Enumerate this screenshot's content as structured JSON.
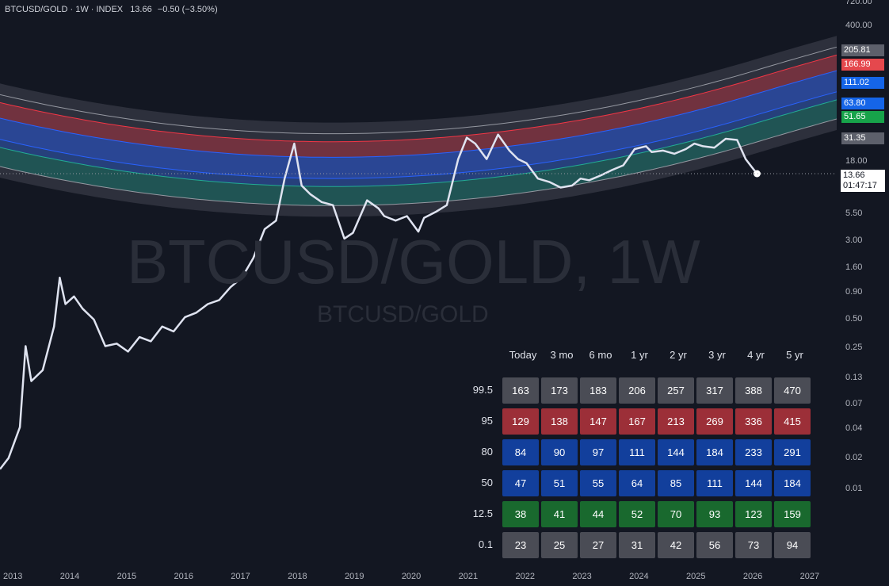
{
  "header": {
    "symbol_line": "BTCUSD/GOLD · 1W · INDEX",
    "last_value": "13.66",
    "change": "−0.50 (−3.50%)"
  },
  "watermark": {
    "main": "BTCUSD/GOLD, 1W",
    "sub": "BTCUSD/GOLD"
  },
  "current_price_tag": {
    "value": "13.66",
    "countdown": "01:47:17"
  },
  "colors": {
    "background": "#131722",
    "band_outer": "#5d606b",
    "band_red": "#f23645",
    "band_blue": "#2962ff",
    "band_green": "#089981",
    "tag_gray": "#5d606b",
    "tag_red": "#e5484d",
    "tag_blue": "#1565e8",
    "tag_green": "#17a34a",
    "cell_gray": "#4a4c55",
    "cell_red": "#9c2f38",
    "cell_blue": "#123f9c",
    "cell_green": "#19692e"
  },
  "band_tags": [
    {
      "label": "205.81",
      "color": "gray"
    },
    {
      "label": "166.99",
      "color": "red"
    },
    {
      "label": "111.02",
      "color": "blue"
    },
    {
      "label": "63.80",
      "color": "blue"
    },
    {
      "label": "51.65",
      "color": "green"
    },
    {
      "label": "31.35",
      "color": "gray"
    }
  ],
  "chart_data": {
    "type": "line",
    "title": "BTCUSD/GOLD, 1W",
    "y_scale": "log",
    "y_ticks": [
      "720.00",
      "400.00",
      "18.00",
      "5.50",
      "3.00",
      "1.60",
      "0.90",
      "0.50",
      "0.25",
      "0.13",
      "0.07",
      "0.04",
      "0.02",
      "0.01"
    ],
    "x_ticks": [
      "2013",
      "2014",
      "2015",
      "2016",
      "2017",
      "2018",
      "2019",
      "2020",
      "2021",
      "2022",
      "2023",
      "2024",
      "2025",
      "2026",
      "2027"
    ],
    "x_range": [
      2012.75,
      2027.45
    ],
    "ylim": [
      0.002,
      1000
    ],
    "bands": {
      "percentiles": [
        "99.5",
        "95",
        "80",
        "50",
        "12.5",
        "0.1"
      ],
      "current_values": [
        205.81,
        166.99,
        111.02,
        63.8,
        51.65,
        31.35
      ]
    },
    "series": [
      {
        "x": [
          2012.75,
          2012.9,
          2013.1,
          2013.2,
          2013.3,
          2013.5,
          2013.7,
          2013.8,
          2013.9,
          2014.05,
          2014.2,
          2014.4,
          2014.6,
          2014.8,
          2015.0,
          2015.2,
          2015.4,
          2015.6,
          2015.8,
          2016.0,
          2016.2,
          2016.4,
          2016.6,
          2016.8,
          2017.0,
          2017.2,
          2017.4,
          2017.6,
          2017.75,
          2017.92,
          2018.05,
          2018.2,
          2018.4,
          2018.6,
          2018.8,
          2018.95,
          2019.2,
          2019.4,
          2019.5,
          2019.7,
          2019.9,
          2020.1,
          2020.2,
          2020.4,
          2020.6,
          2020.8,
          2020.95,
          2021.1,
          2021.3,
          2021.5,
          2021.7,
          2021.85,
          2022.0,
          2022.2,
          2022.4,
          2022.6,
          2022.8,
          2022.95,
          2023.1,
          2023.3,
          2023.5,
          2023.7,
          2023.9,
          2024.1,
          2024.2,
          2024.4,
          2024.6,
          2024.8,
          2024.95,
          2025.1,
          2025.3,
          2025.5,
          2025.7,
          2025.85,
          2025.95,
          2026.05
        ],
        "values": [
          0.006,
          0.008,
          0.018,
          0.15,
          0.06,
          0.08,
          0.25,
          0.9,
          0.45,
          0.55,
          0.4,
          0.3,
          0.15,
          0.16,
          0.13,
          0.19,
          0.17,
          0.25,
          0.22,
          0.32,
          0.36,
          0.45,
          0.5,
          0.7,
          0.9,
          1.5,
          3.2,
          4.0,
          12.0,
          30.0,
          10.0,
          8.0,
          6.5,
          6.0,
          2.5,
          2.9,
          6.8,
          5.5,
          4.5,
          4.0,
          4.5,
          3.0,
          4.3,
          5.0,
          6.0,
          20.0,
          35.0,
          30.0,
          20.0,
          38.0,
          25.0,
          20.0,
          18.0,
          12.0,
          11.0,
          9.5,
          10.0,
          12.0,
          11.5,
          13.0,
          15.0,
          17.0,
          26.0,
          28.0,
          24.0,
          25.0,
          23.0,
          26.0,
          30.0,
          28.0,
          27.0,
          34.0,
          33.0,
          20.0,
          16.5,
          13.66
        ]
      }
    ]
  },
  "table": {
    "columns": [
      "Today",
      "3 mo",
      "6 mo",
      "1 yr",
      "2 yr",
      "3 yr",
      "4 yr",
      "5 yr"
    ],
    "rows": [
      {
        "label": "99.5",
        "color": "gray",
        "values": [
          "163",
          "173",
          "183",
          "206",
          "257",
          "317",
          "388",
          "470"
        ]
      },
      {
        "label": "95",
        "color": "red",
        "values": [
          "129",
          "138",
          "147",
          "167",
          "213",
          "269",
          "336",
          "415"
        ]
      },
      {
        "label": "80",
        "color": "blue",
        "values": [
          "84",
          "90",
          "97",
          "111",
          "144",
          "184",
          "233",
          "291"
        ]
      },
      {
        "label": "50",
        "color": "blue",
        "values": [
          "47",
          "51",
          "55",
          "64",
          "85",
          "111",
          "144",
          "184"
        ]
      },
      {
        "label": "12.5",
        "color": "green",
        "values": [
          "38",
          "41",
          "44",
          "52",
          "70",
          "93",
          "123",
          "159"
        ]
      },
      {
        "label": "0.1",
        "color": "gray",
        "values": [
          "23",
          "25",
          "27",
          "31",
          "42",
          "56",
          "73",
          "94"
        ]
      }
    ]
  }
}
